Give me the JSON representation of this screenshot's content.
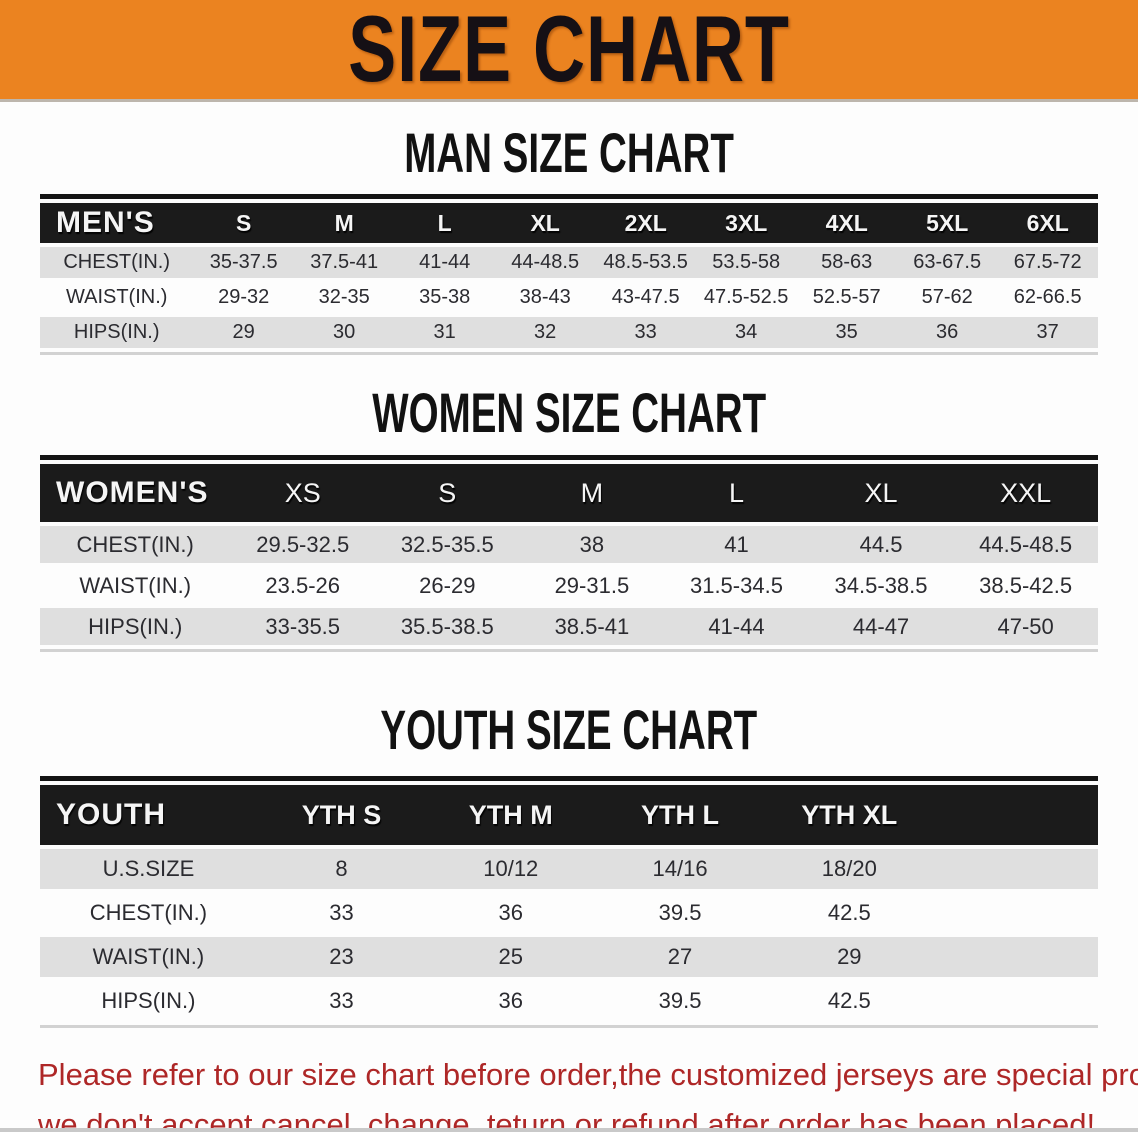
{
  "banner": {
    "title": "SIZE CHART",
    "bg_color": "#EB8320",
    "text_color": "#151015"
  },
  "sections": {
    "men": {
      "heading": "MAN SIZE CHART"
    },
    "women": {
      "heading": "WOMEN SIZE CHART"
    },
    "youth": {
      "heading": "YOUTH SIZE CHART"
    }
  },
  "tables": {
    "men": {
      "label": "MEN'S",
      "sizes": [
        "S",
        "M",
        "L",
        "XL",
        "2XL",
        "3XL",
        "4XL",
        "5XL",
        "6XL"
      ],
      "filler": false,
      "rows": [
        {
          "label": "CHEST(IN.)",
          "values": [
            "35-37.5",
            "37.5-41",
            "41-44",
            "44-48.5",
            "48.5-53.5",
            "53.5-58",
            "58-63",
            "63-67.5",
            "67.5-72"
          ]
        },
        {
          "label": "WAIST(IN.)",
          "values": [
            "29-32",
            "32-35",
            "35-38",
            "38-43",
            "43-47.5",
            "47.5-52.5",
            "52.5-57",
            "57-62",
            "62-66.5"
          ]
        },
        {
          "label": "HIPS(IN.)",
          "values": [
            "29",
            "30",
            "31",
            "32",
            "33",
            "34",
            "35",
            "36",
            "37"
          ]
        }
      ]
    },
    "women": {
      "label": "WOMEN'S",
      "sizes": [
        "XS",
        "S",
        "M",
        "L",
        "XL",
        "XXL"
      ],
      "filler": false,
      "rows": [
        {
          "label": "CHEST(IN.)",
          "values": [
            "29.5-32.5",
            "32.5-35.5",
            "38",
            "41",
            "44.5",
            "44.5-48.5"
          ]
        },
        {
          "label": "WAIST(IN.)",
          "values": [
            "23.5-26",
            "26-29",
            "29-31.5",
            "31.5-34.5",
            "34.5-38.5",
            "38.5-42.5"
          ]
        },
        {
          "label": "HIPS(IN.)",
          "values": [
            "33-35.5",
            "35.5-38.5",
            "38.5-41",
            "41-44",
            "44-47",
            "47-50"
          ]
        }
      ]
    },
    "youth": {
      "label": "YOUTH",
      "sizes": [
        "YTH S",
        "YTH M",
        "YTH L",
        "YTH XL"
      ],
      "filler": true,
      "rows": [
        {
          "label": "U.S.SIZE",
          "values": [
            "8",
            "10/12",
            "14/16",
            "18/20"
          ]
        },
        {
          "label": "CHEST(IN.)",
          "values": [
            "33",
            "36",
            "39.5",
            "42.5"
          ]
        },
        {
          "label": "WAIST(IN.)",
          "values": [
            "23",
            "25",
            "27",
            "29"
          ]
        },
        {
          "label": "HIPS(IN.)",
          "values": [
            "33",
            "36",
            "39.5",
            "42.5"
          ]
        }
      ]
    }
  },
  "footer": {
    "line1": "Please refer to our size chart before order,the customized jerseys are special products,",
    "line2": "we don't accept cancel, change, teturn or refund after order has been placed!",
    "text_color": "#AE2727"
  }
}
